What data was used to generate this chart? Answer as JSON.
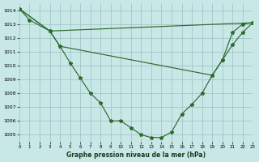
{
  "background_color": "#c8e8e8",
  "grid_color": "#9bbfbf",
  "line_color": "#2d6a2d",
  "xlim": [
    0,
    23
  ],
  "ylim": [
    1004.5,
    1014.5
  ],
  "yticks": [
    1005,
    1006,
    1007,
    1008,
    1009,
    1010,
    1011,
    1012,
    1013,
    1014
  ],
  "xticks": [
    0,
    1,
    2,
    3,
    4,
    5,
    6,
    7,
    8,
    9,
    10,
    11,
    12,
    13,
    14,
    15,
    16,
    17,
    18,
    19,
    20,
    21,
    22,
    23
  ],
  "xlabel": "Graphe pression niveau de la mer (hPa)",
  "lines": [
    {
      "x": [
        0,
        1,
        3,
        4,
        5,
        6,
        7,
        8,
        9,
        10,
        11,
        12,
        13,
        14,
        15,
        16,
        17,
        18,
        19,
        20,
        21,
        22,
        23
      ],
      "y": [
        1014.1,
        1013.3,
        1012.5,
        1011.4,
        1010.2,
        1009.1,
        1008.0,
        1007.3,
        1006.0,
        1006.0,
        1005.5,
        1005.0,
        1004.8,
        1004.8,
        1005.2,
        1006.5,
        1007.2,
        1008.0,
        1009.3,
        1010.4,
        1012.4,
        1013.0,
        1013.1
      ]
    },
    {
      "x": [
        0,
        3,
        23
      ],
      "y": [
        1014.1,
        1012.5,
        1013.1
      ]
    },
    {
      "x": [
        0,
        3,
        4,
        19,
        20,
        21,
        22,
        23
      ],
      "y": [
        1014.1,
        1012.5,
        1011.4,
        1009.3,
        1010.4,
        1011.5,
        1012.4,
        1013.1
      ]
    }
  ]
}
